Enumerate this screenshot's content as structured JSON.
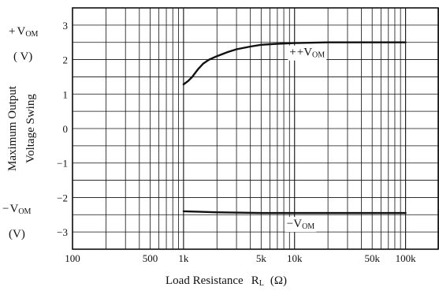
{
  "chart_data": {
    "type": "line",
    "x_scale": "log",
    "xlim": [
      100,
      200000
    ],
    "ylim": [
      -3.5,
      3.5
    ],
    "grid": true,
    "xlabel_main": "Load Resistance",
    "xlabel_symbol": "R",
    "xlabel_sub": "L",
    "xlabel_unit": "(Ω)",
    "ylabel_line1": "Maximum Output",
    "ylabel_line2": "Voltage Swing",
    "top_unit_label": {
      "sign": "+",
      "main": "V",
      "sub": "OM",
      "unit": "( V)"
    },
    "bottom_unit_label": {
      "sign": "−",
      "main": "V",
      "sub": "OM",
      "unit": "(V)"
    },
    "x_ticks": [
      {
        "value": 100,
        "label": "100"
      },
      {
        "value": 500,
        "label": "500"
      },
      {
        "value": 1000,
        "label": "1k"
      },
      {
        "value": 5000,
        "label": "5k"
      },
      {
        "value": 10000,
        "label": "10k"
      },
      {
        "value": 50000,
        "label": "50k"
      },
      {
        "value": 100000,
        "label": "100k"
      }
    ],
    "y_ticks": [
      {
        "value": 3,
        "label": "3"
      },
      {
        "value": 2,
        "label": "2"
      },
      {
        "value": 1,
        "label": "1"
      },
      {
        "value": 0,
        "label": "0"
      },
      {
        "value": -1,
        "label": "−1"
      },
      {
        "value": -2,
        "label": "−2"
      },
      {
        "value": -3,
        "label": "−3"
      }
    ],
    "series": [
      {
        "name": "+V",
        "name_sign": "+",
        "name_sub": "OM",
        "x": [
          1000,
          1100,
          1200,
          1350,
          1500,
          1700,
          2000,
          2500,
          3000,
          4000,
          5000,
          7000,
          10000,
          20000,
          50000,
          100000
        ],
        "y": [
          1.28,
          1.38,
          1.5,
          1.72,
          1.88,
          2.0,
          2.1,
          2.22,
          2.3,
          2.38,
          2.43,
          2.46,
          2.48,
          2.5,
          2.5,
          2.5
        ]
      },
      {
        "name": "−V",
        "name_sign": "−",
        "name_sub": "OM",
        "x": [
          1000,
          2000,
          5000,
          10000,
          20000,
          50000,
          100000
        ],
        "y": [
          -2.4,
          -2.43,
          -2.45,
          -2.45,
          -2.45,
          -2.45,
          -2.45
        ]
      }
    ]
  }
}
